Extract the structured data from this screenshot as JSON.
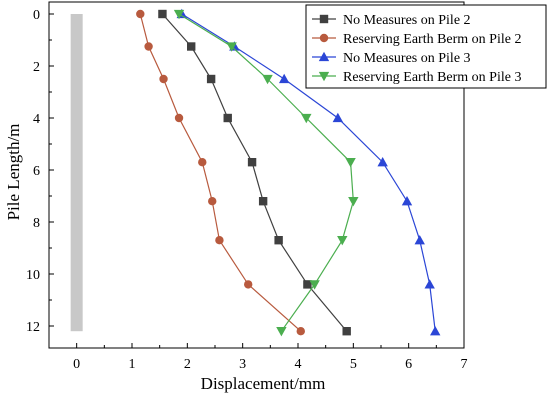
{
  "chart_data": {
    "type": "line",
    "xlabel": "Displacement/mm",
    "ylabel": "Pile Length/m",
    "xlim": [
      -0.5,
      7
    ],
    "ylim": [
      0,
      13
    ],
    "y_inverted": true,
    "x_ticks": [
      0,
      1,
      2,
      3,
      4,
      5,
      6,
      7
    ],
    "y_ticks": [
      0,
      2,
      4,
      6,
      8,
      10,
      12
    ],
    "legend_position": "top-right",
    "grid": false,
    "pile_marker": {
      "x": 0,
      "y_from": 0,
      "y_to": 12.2,
      "color": "#c8c8c8"
    },
    "y": [
      0,
      1.25,
      2.5,
      4,
      5.7,
      7.2,
      8.7,
      10.4,
      12.2
    ],
    "series": [
      {
        "name": "No Measures on Pile 2",
        "color": "#404040",
        "marker": "square",
        "x": [
          1.55,
          2.07,
          2.43,
          2.73,
          3.17,
          3.37,
          3.65,
          4.17,
          4.88
        ]
      },
      {
        "name": "Reserving Earth Berm on Pile 2",
        "color": "#b85a3e",
        "marker": "circle",
        "x": [
          1.15,
          1.3,
          1.57,
          1.85,
          2.27,
          2.45,
          2.58,
          3.1,
          4.05
        ]
      },
      {
        "name": "No Measures on Pile 3",
        "color": "#2b46d6",
        "marker": "triangle-up",
        "x": [
          1.9,
          2.85,
          3.75,
          4.72,
          5.53,
          5.97,
          6.2,
          6.38,
          6.48
        ]
      },
      {
        "name": "Reserving Earth Berm on Pile 3",
        "color": "#4bae4f",
        "marker": "triangle-down",
        "x": [
          1.85,
          2.8,
          3.45,
          4.15,
          4.95,
          5.0,
          4.8,
          4.3,
          3.7
        ]
      }
    ]
  }
}
